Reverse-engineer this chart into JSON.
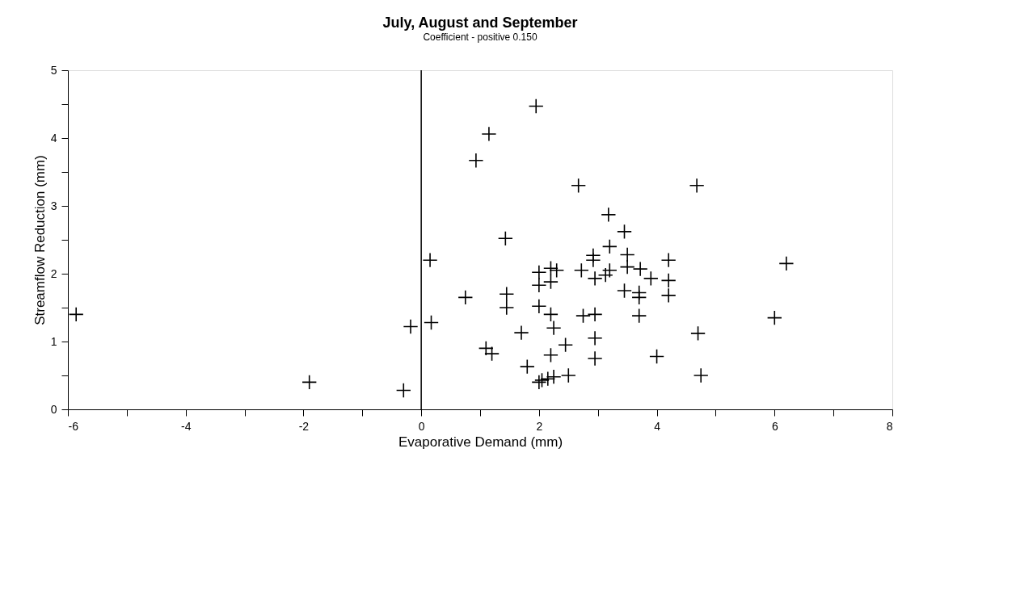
{
  "chart_data": {
    "type": "scatter",
    "title": "July, August and September",
    "subtitle": "Coefficient - positive 0.150",
    "xlabel": "Evaporative Demand (mm)",
    "ylabel": "Streamflow Reduction (mm)",
    "xlim": [
      -6,
      8
    ],
    "ylim": [
      0,
      5
    ],
    "xticks": [
      -6,
      {
        "value": -5,
        "label": null
      },
      -4,
      {
        "value": -3,
        "label": null
      },
      -2,
      {
        "value": -1,
        "label": null
      },
      0,
      {
        "value": 1,
        "label": null
      },
      2,
      {
        "value": 3,
        "label": null
      },
      4,
      {
        "value": 5,
        "label": null
      },
      6,
      {
        "value": 7,
        "label": null
      },
      8
    ],
    "yticks": [
      0,
      {
        "value": 0.5,
        "label": null
      },
      1,
      {
        "value": 1.5,
        "label": null
      },
      2,
      {
        "value": 2.5,
        "label": null
      },
      3,
      {
        "value": 3.5,
        "label": null
      },
      4,
      {
        "value": 4.5,
        "label": null
      },
      5
    ],
    "grid": false,
    "marker": "cross",
    "ref_lines": [
      {
        "axis": "x",
        "value": 0,
        "label": null
      }
    ],
    "series": [
      {
        "color": "#000000",
        "x": [
          -5.86,
          -1.9,
          -0.3,
          -0.18,
          0.15,
          0.17,
          1.95,
          1.15,
          0.93,
          2.67,
          4.68,
          3.18,
          1.43,
          3.45,
          3.2,
          2.92,
          2.92,
          3.5,
          4.2,
          6.2,
          2.0,
          2.2,
          2.3,
          2.72,
          3.2,
          3.5,
          3.72,
          3.13,
          2.95,
          3.9,
          4.2,
          2.0,
          2.2,
          0.75,
          1.45,
          1.45,
          3.45,
          3.7,
          3.7,
          4.2,
          3.7,
          2.0,
          2.2,
          2.75,
          2.95,
          6.0,
          1.7,
          2.25,
          2.95,
          1.1,
          1.2,
          2.45,
          4.7,
          2.95,
          4.0,
          2.2,
          1.8,
          2.5,
          2.25,
          2.05,
          2.15,
          4.75,
          2.0
        ],
        "values": [
          1.4,
          0.4,
          0.28,
          1.22,
          2.2,
          1.28,
          4.47,
          4.06,
          3.67,
          3.3,
          3.3,
          2.87,
          2.52,
          2.62,
          2.4,
          2.27,
          2.2,
          2.28,
          2.2,
          2.15,
          2.02,
          2.08,
          2.05,
          2.05,
          2.05,
          2.1,
          2.07,
          1.98,
          1.93,
          1.93,
          1.9,
          1.83,
          1.88,
          1.65,
          1.7,
          1.5,
          1.75,
          1.72,
          1.65,
          1.68,
          1.38,
          1.52,
          1.4,
          1.38,
          1.4,
          1.35,
          1.13,
          1.2,
          1.05,
          0.9,
          0.82,
          0.95,
          1.12,
          0.75,
          0.78,
          0.8,
          0.63,
          0.5,
          0.48,
          0.43,
          0.45,
          0.5,
          0.4
        ]
      }
    ]
  }
}
